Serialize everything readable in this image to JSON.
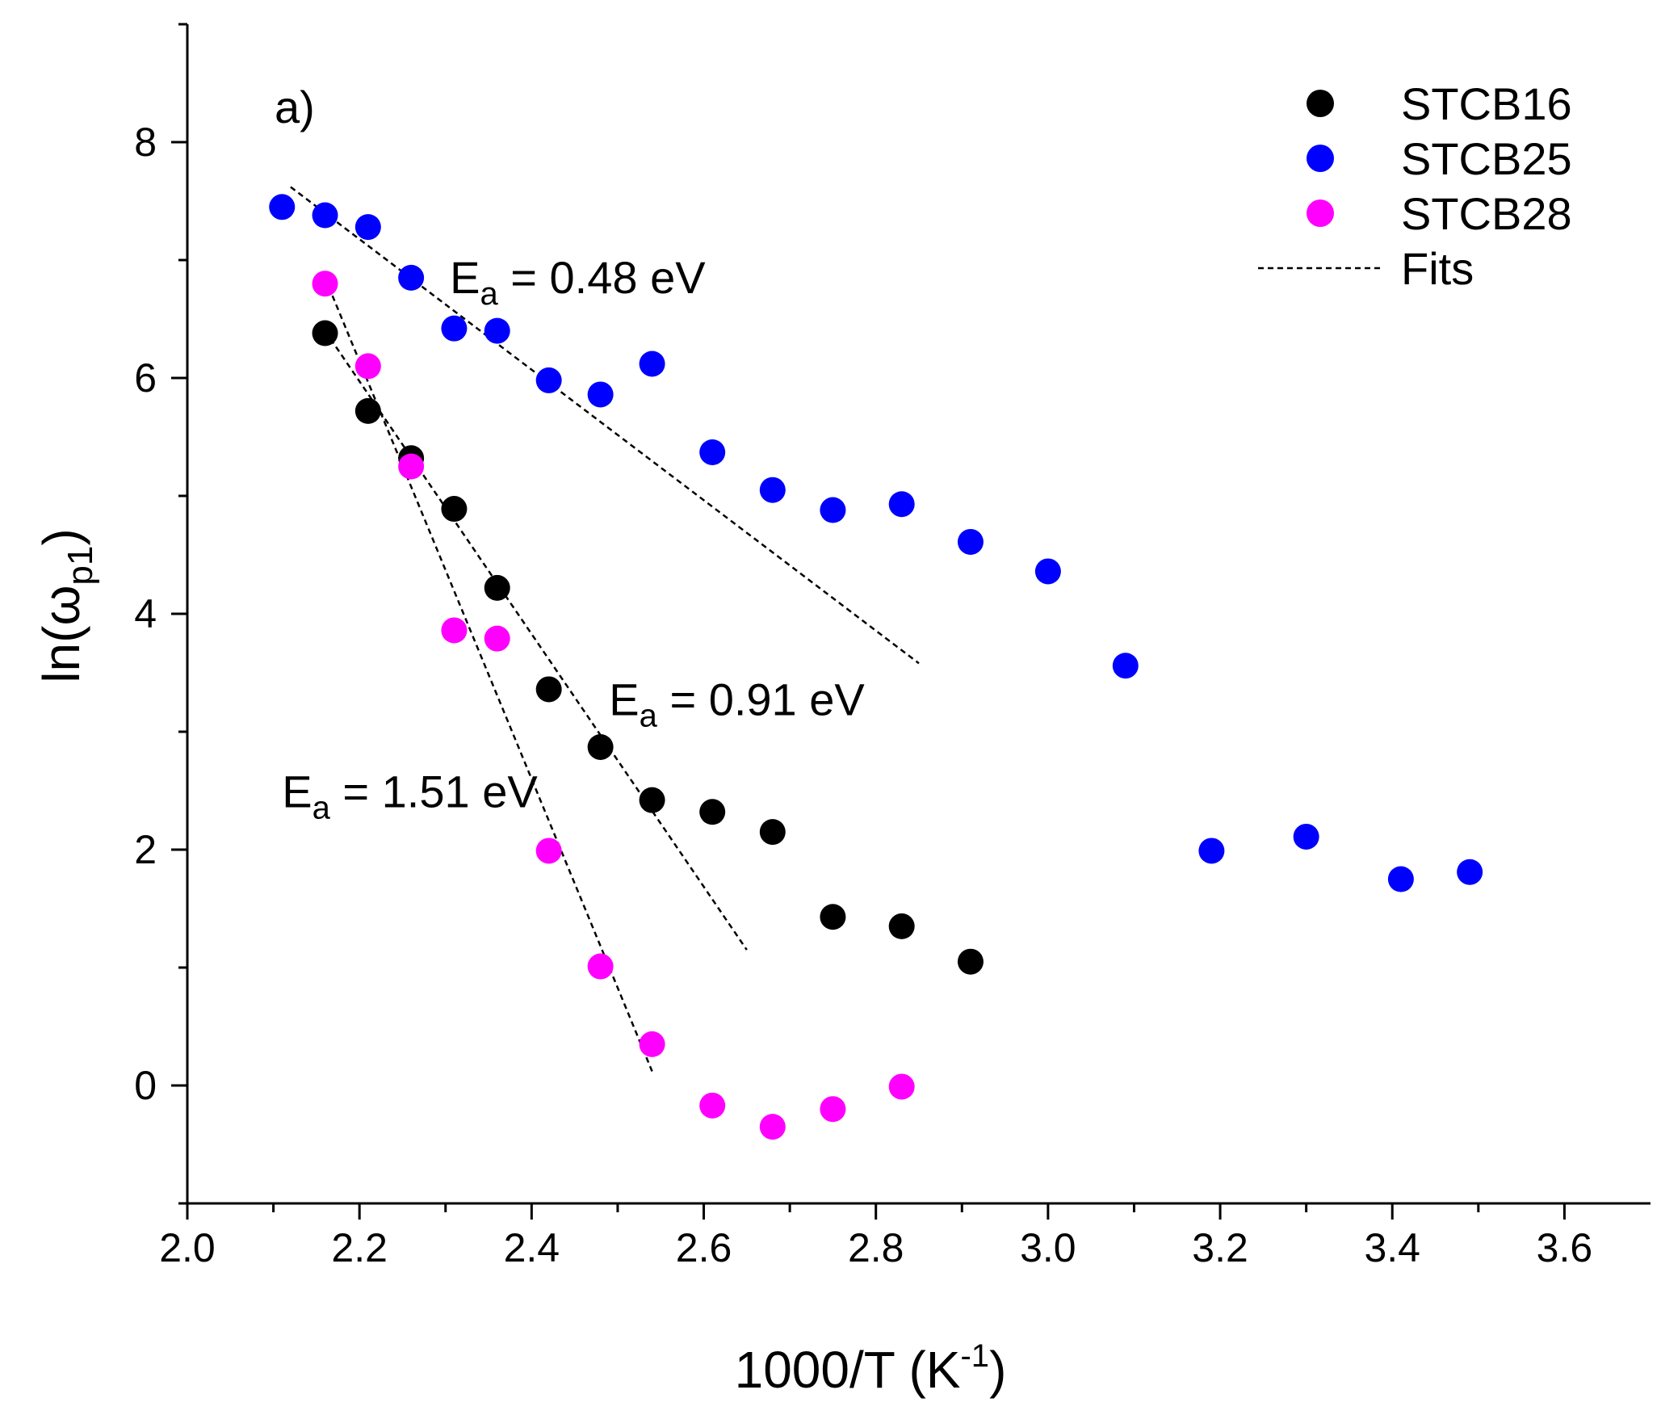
{
  "chart_data": {
    "type": "scatter",
    "panel_label": "a)",
    "xlabel": {
      "main": "1000/T (K",
      "sup": "-1",
      "end": ")"
    },
    "ylabel": {
      "main": "ln(ω",
      "sub": "p1",
      "end": ")"
    },
    "xlim": [
      2.0,
      3.7
    ],
    "ylim": [
      -1.0,
      9.0
    ],
    "xticks": [
      2.0,
      2.2,
      2.4,
      2.6,
      2.8,
      3.0,
      3.2,
      3.4,
      3.6
    ],
    "xtick_labels": [
      "2.0",
      "2.2",
      "2.4",
      "2.6",
      "2.8",
      "3.0",
      "3.2",
      "3.4",
      "3.6"
    ],
    "yticks": [
      0,
      2,
      4,
      6,
      8
    ],
    "ytick_labels": [
      "0",
      "2",
      "4",
      "6",
      "8"
    ],
    "legend_position": "top-right",
    "series": [
      {
        "name": "STCB16",
        "color": "#000000",
        "x": [
          2.16,
          2.21,
          2.26,
          2.31,
          2.36,
          2.42,
          2.48,
          2.54,
          2.61,
          2.68,
          2.75,
          2.83,
          2.91
        ],
        "y": [
          6.38,
          5.72,
          5.32,
          4.89,
          4.22,
          3.36,
          2.87,
          2.42,
          2.32,
          2.15,
          1.43,
          1.35,
          1.05
        ]
      },
      {
        "name": "STCB25",
        "color": "#0000ff",
        "x": [
          2.11,
          2.16,
          2.21,
          2.26,
          2.31,
          2.36,
          2.42,
          2.48,
          2.54,
          2.61,
          2.68,
          2.75,
          2.83,
          2.91,
          3.0,
          3.09,
          3.19,
          3.3,
          3.41,
          3.49
        ],
        "y": [
          7.45,
          7.38,
          7.28,
          6.85,
          6.42,
          6.4,
          5.98,
          5.86,
          6.12,
          5.37,
          5.05,
          4.88,
          4.93,
          4.61,
          4.36,
          3.56,
          1.99,
          2.11,
          1.75,
          1.81
        ]
      },
      {
        "name": "STCB28",
        "color": "#ff00ff",
        "x": [
          2.16,
          2.21,
          2.26,
          2.31,
          2.36,
          2.42,
          2.48,
          2.54,
          2.61,
          2.68,
          2.75,
          2.83
        ],
        "y": [
          6.8,
          6.1,
          5.25,
          3.86,
          3.79,
          1.99,
          1.01,
          0.35,
          -0.17,
          -0.35,
          -0.2,
          -0.01
        ]
      }
    ],
    "fits": {
      "name": "Fits",
      "color": "#000000",
      "lines": [
        {
          "x": [
            2.12,
            2.85
          ],
          "y": [
            7.62,
            3.58
          ]
        },
        {
          "x": [
            2.16,
            2.65
          ],
          "y": [
            6.4,
            1.15
          ]
        },
        {
          "x": [
            2.16,
            2.54
          ],
          "y": [
            6.85,
            0.12
          ]
        }
      ]
    },
    "annotations": [
      {
        "text": "E",
        "sub": "a",
        "rest": " = 0.48 eV",
        "x": 2.305,
        "y": 6.72
      },
      {
        "text": "E",
        "sub": "a",
        "rest": " = 0.91 eV",
        "x": 2.49,
        "y": 3.14
      },
      {
        "text": "E",
        "sub": "a",
        "rest": " = 1.51 eV",
        "x": 2.11,
        "y": 2.36
      }
    ]
  }
}
